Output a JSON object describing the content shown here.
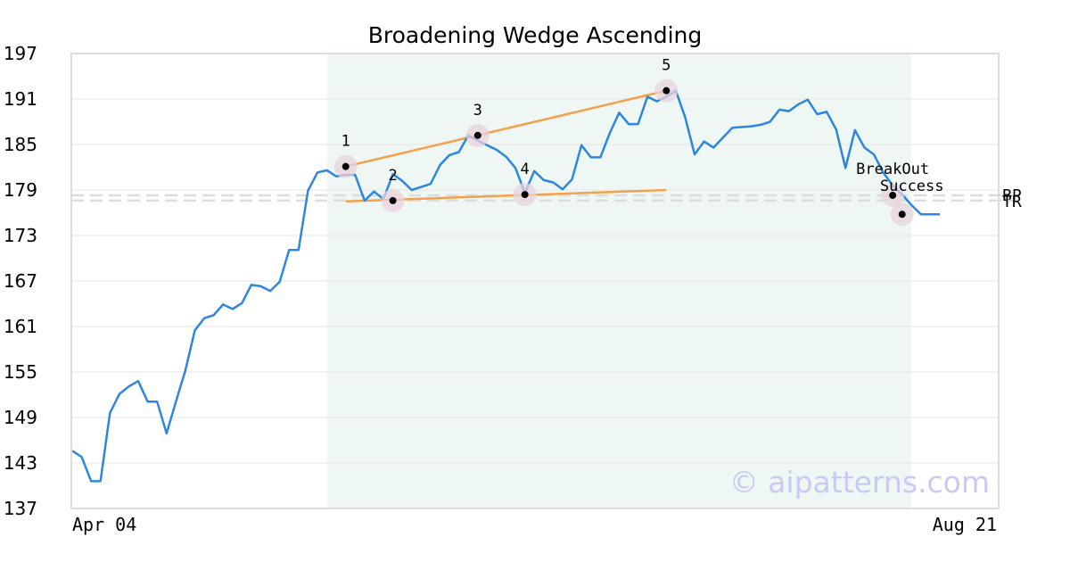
{
  "chart_data": {
    "type": "line",
    "title": "Broadening Wedge Ascending",
    "xlabel": "",
    "ylabel": "",
    "ylim": [
      137,
      197
    ],
    "y_ticks": [
      "197",
      "191",
      "185",
      "179",
      "173",
      "167",
      "161",
      "155",
      "149",
      "143",
      "137"
    ],
    "x_tick_labels": [
      "Apr 04",
      "Aug 21"
    ],
    "grid": "horizontal",
    "colors": {
      "price_line": "#2e86de",
      "trend_lines": "#f5a04a",
      "pattern_zone": "#eef7f3",
      "marker_halo": "#e8d3dc",
      "level_lines": "#dddddd",
      "frame": "#dddddd",
      "watermark": "#c9c9f5"
    },
    "series": [
      {
        "values": [
          144.6,
          143.8,
          140.6,
          140.6,
          149.6,
          152.1,
          153.1,
          153.8,
          151.1,
          151.1,
          146.9,
          151.1,
          155.2,
          160.5,
          162.1,
          162.5,
          163.9,
          163.3,
          164.1,
          166.5,
          166.3,
          165.7,
          166.9,
          171.1,
          171.1,
          178.9,
          181.3,
          181.6,
          180.8,
          181.0,
          181.0,
          177.6,
          178.8,
          177.8,
          181.1,
          180.2,
          179.0,
          179.4,
          179.8,
          182.3,
          183.6,
          184.0,
          186.2,
          185.5,
          184.9,
          184.3,
          183.4,
          181.9,
          178.6,
          181.5,
          180.3,
          180.0,
          179.1,
          180.4,
          184.9,
          183.3,
          183.3,
          186.5,
          189.2,
          187.7,
          187.7,
          191.3,
          190.7,
          191.3,
          192.1,
          188.6,
          183.7,
          185.4,
          184.6,
          185.9,
          187.2,
          187.3,
          187.4,
          187.6,
          188.0,
          189.6,
          189.4,
          190.3,
          190.9,
          189.0,
          189.3,
          187.0,
          181.9,
          186.9,
          184.6,
          183.7,
          181.3,
          179.6,
          178.4,
          177.0,
          175.8,
          175.8,
          175.8
        ]
      }
    ],
    "pattern_points": [
      {
        "label": "1",
        "index": 29,
        "value": 182.1
      },
      {
        "label": "2",
        "index": 34,
        "value": 177.6
      },
      {
        "label": "3",
        "index": 43,
        "value": 186.2
      },
      {
        "label": "4",
        "index": 48,
        "value": 178.4
      },
      {
        "label": "5",
        "index": 63,
        "value": 192.1
      }
    ],
    "trend_lines": [
      {
        "name": "upper",
        "start": {
          "index": 29,
          "value": 182.1
        },
        "end": {
          "index": 63,
          "value": 192.1
        }
      },
      {
        "name": "lower",
        "start": {
          "index": 29,
          "value": 177.5
        },
        "end": {
          "index": 63,
          "value": 179.0
        }
      }
    ],
    "pattern_zone": {
      "start_index": 27,
      "end_index": 89
    },
    "levels": [
      {
        "label": "BP",
        "value": 178.3
      },
      {
        "label": "TR",
        "value": 177.6
      }
    ],
    "annotations": [
      {
        "text": "BreakOut",
        "index": 87,
        "value": 178.3
      },
      {
        "text": "Success",
        "index": 88,
        "value": 175.8
      }
    ],
    "watermark": "© aipatterns.com"
  }
}
